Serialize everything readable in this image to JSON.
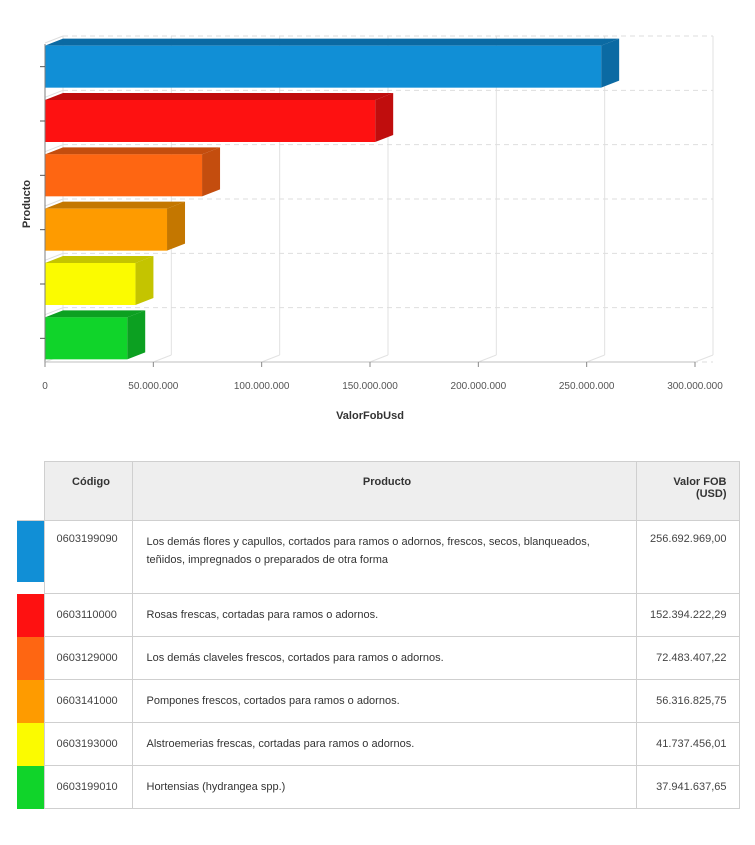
{
  "chart_data": {
    "type": "bar",
    "orientation": "horizontal",
    "three_d": true,
    "xlabel": "ValorFobUsd",
    "ylabel": "Producto",
    "xlim": [
      0,
      300000000
    ],
    "x_ticks": [
      0,
      50000000,
      100000000,
      150000000,
      200000000,
      250000000,
      300000000
    ],
    "x_tick_labels": [
      "0",
      "50.000.000",
      "100.000.000",
      "150.000.000",
      "200.000.000",
      "250.000.000",
      "300.000.000"
    ],
    "grid": true,
    "categories": [
      "0603199090",
      "0603110000",
      "0603129000",
      "0603141000",
      "0603193000",
      "0603199010"
    ],
    "values": [
      256692969.0,
      152394222.29,
      72483407.22,
      56316825.75,
      41737456.01,
      37941637.65
    ],
    "colors": [
      "#118fd6",
      "#fe1111",
      "#fe6612",
      "#fe9b00",
      "#fbfb00",
      "#10d42a"
    ],
    "side_colors": [
      "#0b6aa3",
      "#c00d0d",
      "#c44d0e",
      "#c47700",
      "#c4c400",
      "#0ca021"
    ]
  },
  "table": {
    "headers": {
      "codigo": "Código",
      "producto": "Producto",
      "valor_line1": "Valor FOB",
      "valor_line2": "(USD)"
    },
    "rows": [
      {
        "codigo": "0603199090",
        "producto": "Los demás flores y capullos, cortados para ramos o adornos, frescos, secos, blanqueados, teñidos, impregnados o preparados de otra forma",
        "valor": "256.692.969,00",
        "color": "#118fd6"
      },
      {
        "codigo": "0603110000",
        "producto": "Rosas frescas, cortadas para ramos o adornos.",
        "valor": "152.394.222,29",
        "color": "#fe1111"
      },
      {
        "codigo": "0603129000",
        "producto": "Los demás claveles frescos, cortados para ramos o adornos.",
        "valor": "72.483.407,22",
        "color": "#fe6612"
      },
      {
        "codigo": "0603141000",
        "producto": "Pompones frescos, cortados para ramos o adornos.",
        "valor": "56.316.825,75",
        "color": "#fe9b00"
      },
      {
        "codigo": "0603193000",
        "producto": "Alstroemerias frescas, cortadas para ramos o adornos.",
        "valor": "41.737.456,01",
        "color": "#fbfb00"
      },
      {
        "codigo": "0603199010",
        "producto": "Hortensias (hydrangea spp.)",
        "valor": "37.941.637,65",
        "color": "#10d42a"
      }
    ]
  }
}
